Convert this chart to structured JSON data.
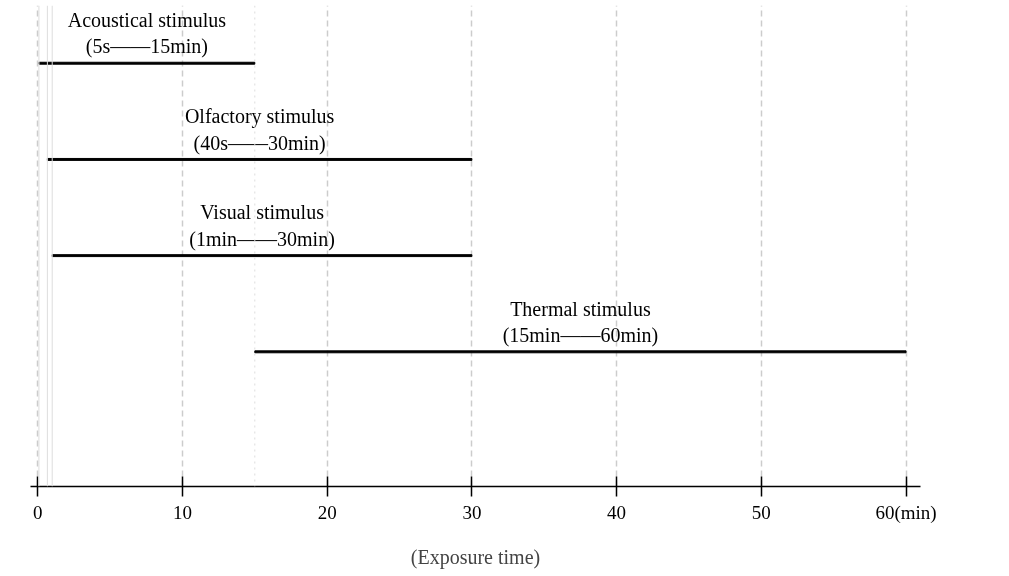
{
  "chart_data": {
    "type": "bar",
    "orientation": "horizontal",
    "categories": [
      "Acoustical stimulus\n(5s——15min)",
      "Olfactory stimulus\n(40s——30min)",
      "Visual stimulus\n(1min——30min)",
      "Thermal stimulus\n(15min——60min)"
    ],
    "base": [
      0.083,
      0.667,
      1,
      15
    ],
    "values": [
      14.917,
      29.333,
      29,
      45
    ],
    "color": "#000000",
    "xlim": [
      -0.5,
      61
    ],
    "xticks": [
      0,
      10,
      20,
      30,
      40,
      50,
      {
        "value": 60,
        "label": "60(min)"
      }
    ],
    "xlabel": "(Exposure time)",
    "grid": "x",
    "tick_labels": "x",
    "ref_lines": [
      {
        "axis": "x",
        "value": 0.083,
        "color": "#dddddd"
      },
      {
        "axis": "x",
        "value": 0.667,
        "color": "#dddddd"
      },
      {
        "axis": "x",
        "value": 1,
        "color": "#dddddd"
      },
      {
        "axis": "x",
        "value": 15,
        "color": "#dddddd",
        "line_style": "dotted"
      }
    ]
  }
}
